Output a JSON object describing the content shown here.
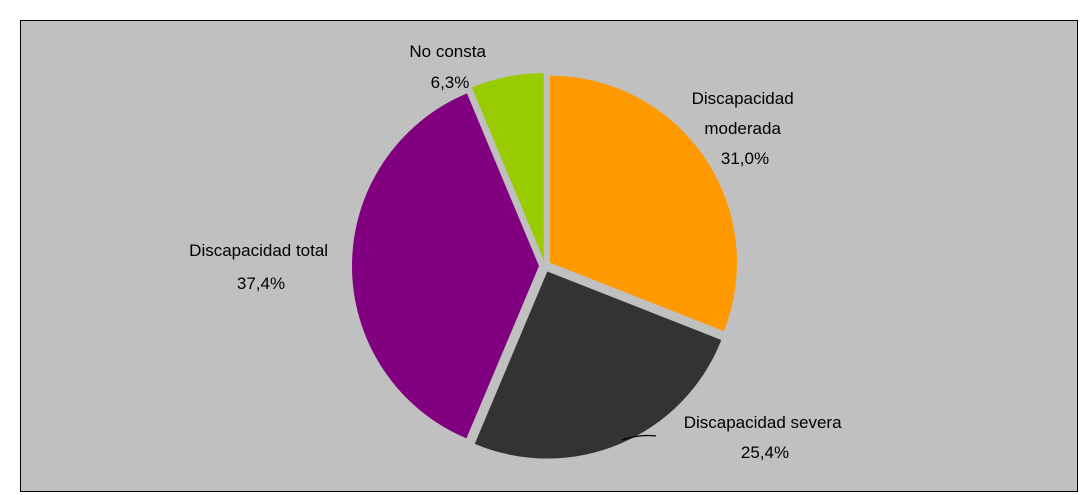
{
  "chart_data": {
    "type": "pie",
    "title": "",
    "slices": [
      {
        "label_lines": [
          "Discapacidad",
          "moderada"
        ],
        "value": 31.0,
        "value_label": "31,0%",
        "color": "#ff9900"
      },
      {
        "label_lines": [
          "Discapacidad severa"
        ],
        "value": 25.4,
        "value_label": "25,4%",
        "color": "#333333"
      },
      {
        "label_lines": [
          "Discapacidad total"
        ],
        "value": 37.4,
        "value_label": "37,4%",
        "color": "#800080"
      },
      {
        "label_lines": [
          "No consta"
        ],
        "value": 6.3,
        "value_label": "6,3%",
        "color": "#99cc00"
      }
    ],
    "background_color": "#c0c0c0",
    "start_angle": "12 o'clock",
    "direction": "clockwise",
    "exploded": true,
    "legend": "none"
  }
}
